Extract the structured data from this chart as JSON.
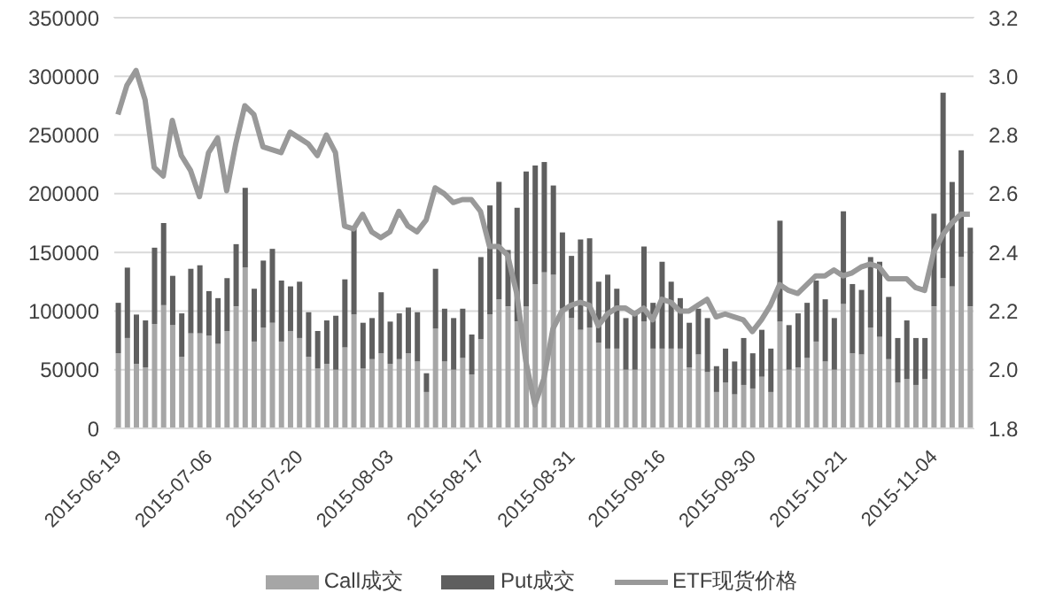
{
  "chart_data": {
    "type": "bar",
    "stacked": true,
    "categories": [
      "2015-06-19",
      null,
      null,
      null,
      null,
      null,
      null,
      null,
      null,
      null,
      "2015-07-06",
      null,
      null,
      null,
      null,
      null,
      null,
      null,
      null,
      null,
      "2015-07-20",
      null,
      null,
      null,
      null,
      null,
      null,
      null,
      null,
      null,
      "2015-08-03",
      null,
      null,
      null,
      null,
      null,
      null,
      null,
      null,
      null,
      "2015-08-17",
      null,
      null,
      null,
      null,
      null,
      null,
      null,
      null,
      null,
      "2015-08-31",
      null,
      null,
      null,
      null,
      null,
      null,
      null,
      null,
      null,
      "2015-09-16",
      null,
      null,
      null,
      null,
      null,
      null,
      null,
      null,
      null,
      "2015-09-30",
      null,
      null,
      null,
      null,
      null,
      null,
      null,
      null,
      null,
      "2015-10-21",
      null,
      null,
      null,
      null,
      null,
      null,
      null,
      null,
      null,
      "2015-11-04",
      null,
      null,
      null,
      null
    ],
    "series": [
      {
        "name": "Call成交",
        "color": "#a6a6a6",
        "values": [
          64000,
          77000,
          55000,
          52000,
          89000,
          105000,
          88000,
          61000,
          81000,
          81000,
          79000,
          72000,
          83000,
          104000,
          137000,
          74000,
          86000,
          90000,
          74000,
          83000,
          77000,
          61000,
          51000,
          55000,
          50000,
          69000,
          97000,
          51000,
          59000,
          64000,
          55000,
          59000,
          64000,
          57000,
          31000,
          85000,
          57000,
          50000,
          60000,
          46000,
          76000,
          97000,
          110000,
          104000,
          91000,
          104000,
          123000,
          133000,
          131000,
          102000,
          94000,
          84000,
          86000,
          73000,
          68000,
          68000,
          50000,
          50000,
          91000,
          68000,
          68000,
          68000,
          68000,
          52000,
          63000,
          48000,
          31000,
          39000,
          29000,
          37000,
          34000,
          44000,
          31000,
          91000,
          50000,
          52000,
          60000,
          74000,
          57000,
          50000,
          106000,
          64000,
          63000,
          86000,
          78000,
          59000,
          39000,
          42000,
          37000,
          42000,
          104000,
          128000,
          121000,
          146000,
          104000
        ]
      },
      {
        "name": "Put成交",
        "color": "#5f5f5f",
        "values": [
          43000,
          60000,
          42000,
          40000,
          65000,
          70000,
          42000,
          37000,
          55000,
          58000,
          38000,
          39000,
          45000,
          53000,
          68000,
          45000,
          57000,
          63000,
          52000,
          38000,
          48000,
          38000,
          32000,
          37000,
          46000,
          58000,
          73000,
          39000,
          35000,
          52000,
          36000,
          39000,
          39000,
          42000,
          16000,
          51000,
          45000,
          44000,
          42000,
          34000,
          70000,
          93000,
          100000,
          48000,
          97000,
          115000,
          101000,
          94000,
          76000,
          65000,
          53000,
          77000,
          76000,
          52000,
          63000,
          51000,
          44000,
          47000,
          64000,
          39000,
          74000,
          57000,
          43000,
          38000,
          39000,
          46000,
          22000,
          29000,
          28000,
          40000,
          30000,
          40000,
          37000,
          86000,
          38000,
          46000,
          47000,
          52000,
          53000,
          44000,
          79000,
          59000,
          55000,
          60000,
          64000,
          53000,
          38000,
          50000,
          40000,
          35000,
          79000,
          158000,
          89000,
          91000,
          67000
        ]
      },
      {
        "name": "ETF现货价格",
        "type": "line",
        "axis": "y2",
        "color": "#999999",
        "values": [
          2.87,
          2.97,
          3.02,
          2.92,
          2.69,
          2.66,
          2.85,
          2.73,
          2.68,
          2.59,
          2.74,
          2.79,
          2.61,
          2.77,
          2.9,
          2.87,
          2.76,
          2.75,
          2.74,
          2.81,
          2.79,
          2.77,
          2.73,
          2.8,
          2.74,
          2.49,
          2.48,
          2.53,
          2.47,
          2.45,
          2.47,
          2.54,
          2.49,
          2.47,
          2.51,
          2.62,
          2.6,
          2.57,
          2.58,
          2.58,
          2.54,
          2.42,
          2.42,
          2.39,
          2.26,
          2.03,
          1.88,
          1.97,
          2.14,
          2.2,
          2.22,
          2.23,
          2.22,
          2.15,
          2.19,
          2.21,
          2.21,
          2.19,
          2.21,
          2.17,
          2.24,
          2.23,
          2.2,
          2.2,
          2.22,
          2.24,
          2.18,
          2.19,
          2.18,
          2.17,
          2.13,
          2.17,
          2.22,
          2.29,
          2.27,
          2.26,
          2.29,
          2.32,
          2.32,
          2.34,
          2.32,
          2.33,
          2.35,
          2.36,
          2.35,
          2.31,
          2.31,
          2.31,
          2.28,
          2.27,
          2.4,
          2.46,
          2.5,
          2.53,
          2.53
        ]
      }
    ],
    "ylim": [
      0,
      350000
    ],
    "yticks": [
      0,
      50000,
      100000,
      150000,
      200000,
      250000,
      300000,
      350000
    ],
    "y2lim": [
      1.8,
      3.2
    ],
    "y2ticks": [
      {
        "value": 1.8,
        "label": "1.8"
      },
      {
        "value": 2,
        "label": "2.0"
      },
      {
        "value": 2.2,
        "label": "2.2"
      },
      {
        "value": 2.4,
        "label": "2.4"
      },
      {
        "value": 2.6,
        "label": "2.6"
      },
      {
        "value": 2.8,
        "label": "2.8"
      },
      {
        "value": 3,
        "label": "3.0"
      },
      {
        "value": 3.2,
        "label": "3.2"
      }
    ],
    "grid": "y",
    "legend": "bottom",
    "marker": "none",
    "line_style": "solid"
  }
}
